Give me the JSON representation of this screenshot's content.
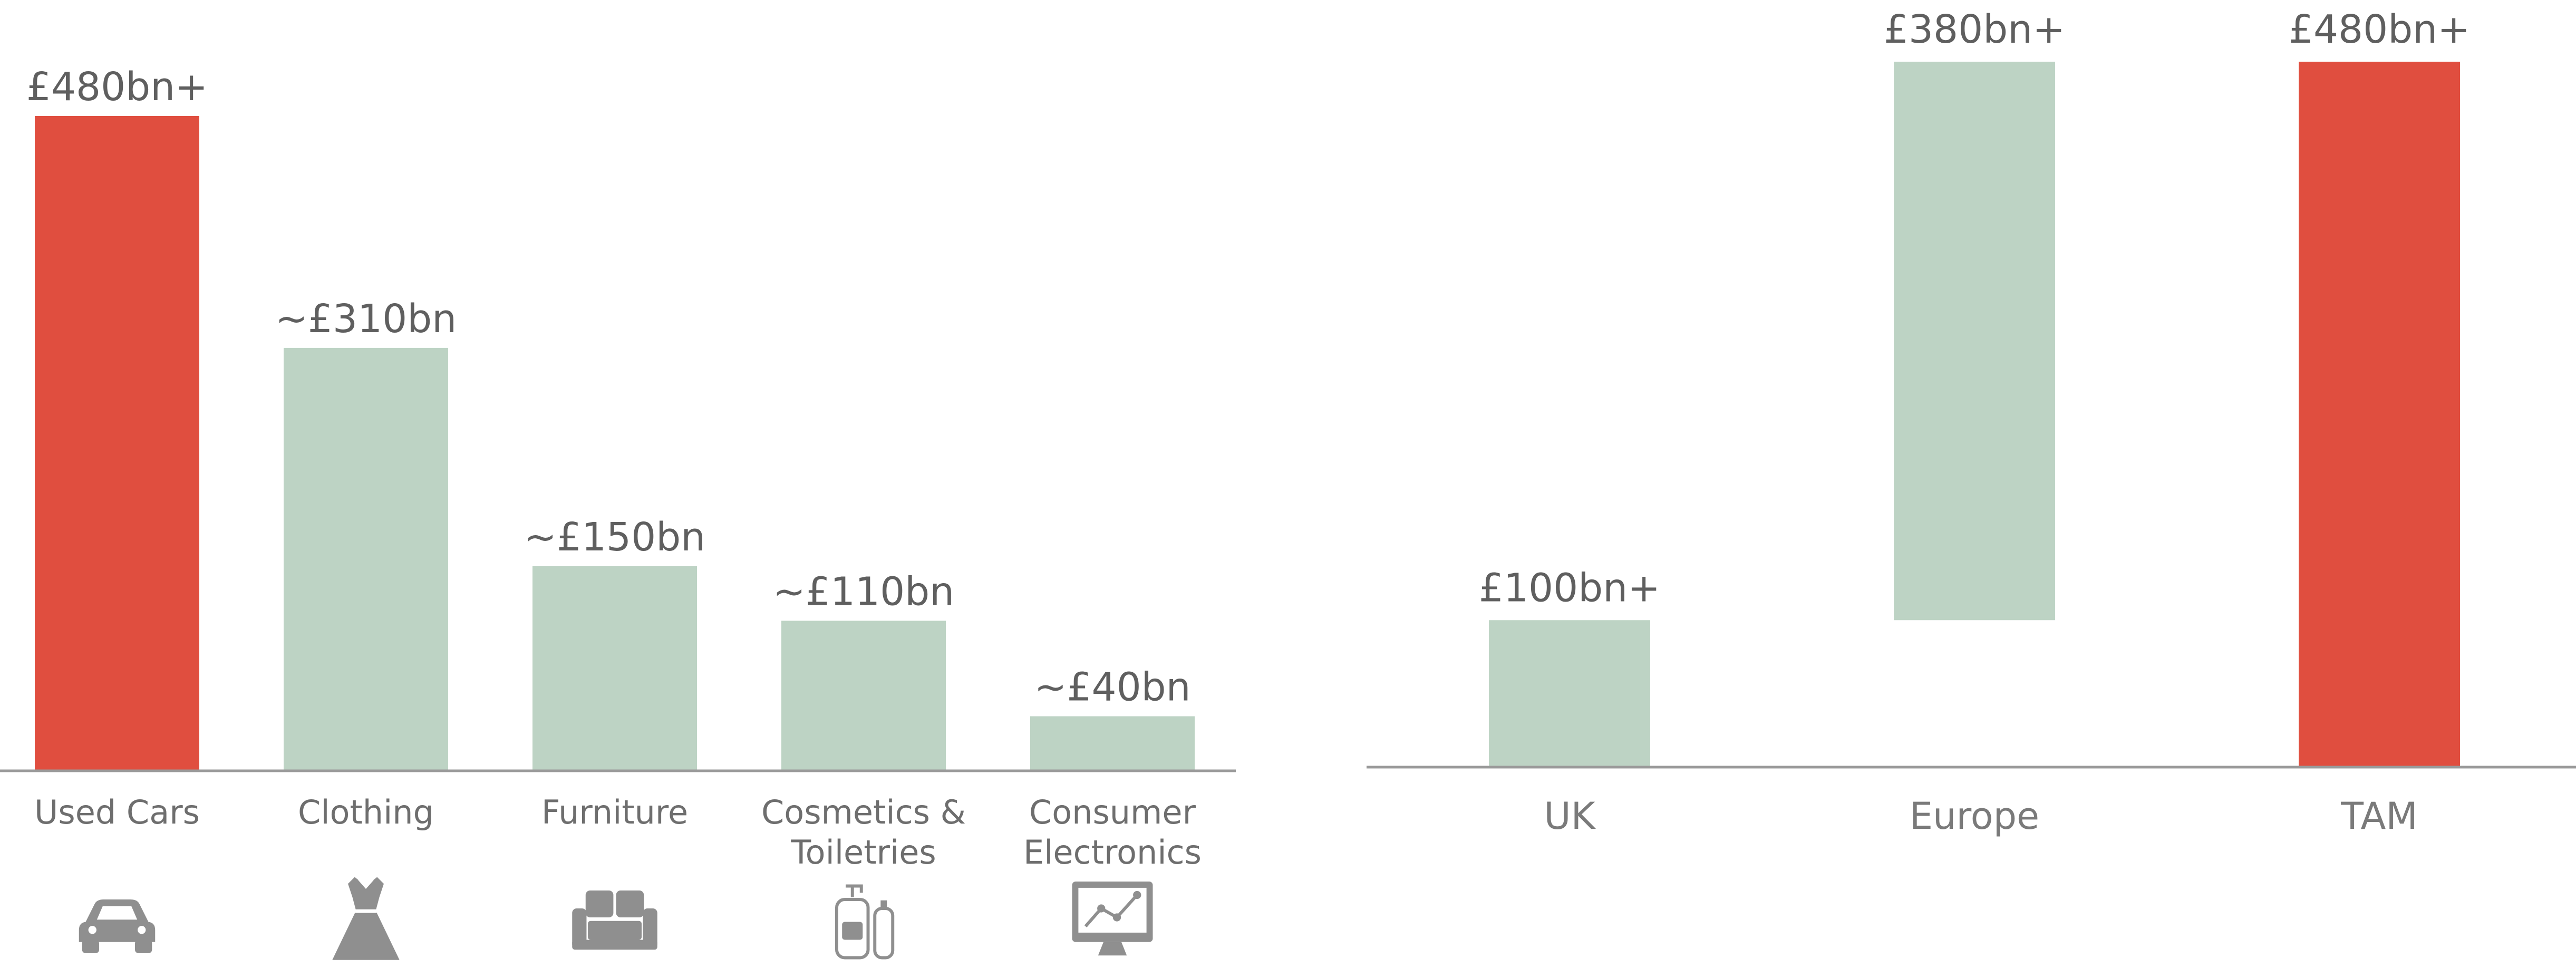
{
  "colors": {
    "highlight": "#e04e3f",
    "normal": "#bdd3c4",
    "text": "#5f5f5f",
    "axis": "#9a9a9a",
    "icon": "#8f8f8f"
  },
  "chart_data": [
    {
      "type": "bar",
      "categories": [
        "Used Cars",
        "Clothing",
        "Furniture",
        "Cosmetics & Toiletries",
        "Consumer Electronics"
      ],
      "category_lines": [
        [
          "Used Cars"
        ],
        [
          "Clothing"
        ],
        [
          "Furniture"
        ],
        [
          "Cosmetics &",
          "Toiletries"
        ],
        [
          "Consumer",
          "Electronics"
        ]
      ],
      "values": [
        480,
        310,
        150,
        110,
        40
      ],
      "data_labels": [
        "£480bn+",
        "~£310bn",
        "~£150bn",
        "~£110bn",
        "~£40bn"
      ],
      "highlight": [
        true,
        false,
        false,
        false,
        false
      ],
      "icons": [
        "car-icon",
        "dress-icon",
        "sofa-icon",
        "cosmetics-icon",
        "monitor-icon"
      ],
      "ylim": [
        0,
        480
      ]
    },
    {
      "type": "bar",
      "subtype": "waterfall",
      "categories": [
        "UK",
        "Europe",
        "TAM"
      ],
      "values": [
        100,
        380,
        480
      ],
      "bar_ranges": [
        [
          0,
          100
        ],
        [
          100,
          480
        ],
        [
          0,
          480
        ]
      ],
      "data_labels": [
        "£100bn+",
        "£380bn+",
        "£480bn+"
      ],
      "highlight": [
        false,
        false,
        true
      ],
      "ylim": [
        0,
        480
      ]
    }
  ]
}
